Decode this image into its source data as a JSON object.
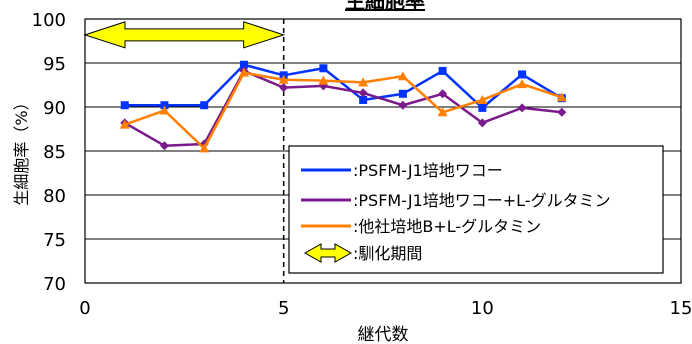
{
  "chart_data": {
    "type": "line",
    "title": "生細胞率",
    "xlabel": "継代数",
    "ylabel": "生細胞率（%）",
    "xlim": [
      0,
      15
    ],
    "ylim": [
      70,
      100
    ],
    "xticks": [
      0,
      5,
      10,
      15
    ],
    "yticks": [
      70,
      75,
      80,
      85,
      90,
      95,
      100
    ],
    "grid": "horizontal",
    "legend_position": "bottom-right",
    "series": [
      {
        "name": ":PSFM-J1培地ワコー",
        "color": "#0033ff",
        "marker": "square",
        "x": [
          1,
          2,
          3,
          4,
          5,
          6,
          7,
          8,
          9,
          10,
          11,
          12
        ],
        "y": [
          90.2,
          90.2,
          90.2,
          94.8,
          93.6,
          94.4,
          90.8,
          91.5,
          94.1,
          89.9,
          93.7,
          91.0
        ]
      },
      {
        "name": ":PSFM-J1培地ワコー+L-グルタミン",
        "color": "#7a1a8c",
        "marker": "diamond",
        "x": [
          1,
          2,
          3,
          4,
          5,
          6,
          7,
          8,
          9,
          10,
          11,
          12
        ],
        "y": [
          88.2,
          85.6,
          85.8,
          94.1,
          92.2,
          92.4,
          91.6,
          90.2,
          91.5,
          88.2,
          89.9,
          89.4
        ]
      },
      {
        "name": ":他社培地B+L-グルタミン",
        "color": "#ff7f00",
        "marker": "triangle",
        "x": [
          1,
          2,
          3,
          4,
          5,
          6,
          7,
          8,
          9,
          10,
          11,
          12
        ],
        "y": [
          88.0,
          89.6,
          85.3,
          93.9,
          93.1,
          93.0,
          92.8,
          93.5,
          89.4,
          90.8,
          92.6,
          91.1
        ]
      }
    ],
    "annotation": {
      "label": ":馴化期間",
      "arrow_from_x": 0,
      "arrow_to_x": 5,
      "arrow_y": 98.2,
      "dashed_line_x": 5
    }
  }
}
